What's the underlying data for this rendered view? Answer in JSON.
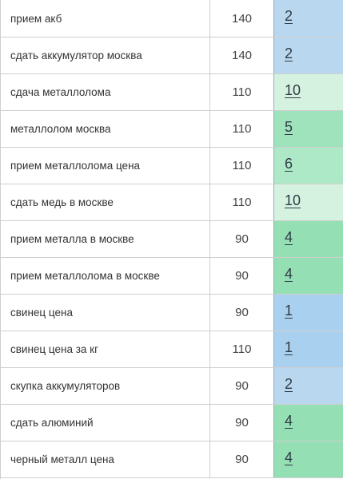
{
  "rows": [
    {
      "query": "прием акб",
      "frequency": "140",
      "rank": "2",
      "color": "#b9d8f0"
    },
    {
      "query": "сдать аккумулятор москва",
      "frequency": "140",
      "rank": "2",
      "color": "#b9d8f0"
    },
    {
      "query": "сдача металлолома",
      "frequency": "110",
      "rank": "10",
      "color": "#d5f2e1"
    },
    {
      "query": "металлолом москва",
      "frequency": "110",
      "rank": "5",
      "color": "#9ee3bc"
    },
    {
      "query": "прием металлолома цена",
      "frequency": "110",
      "rank": "6",
      "color": "#ade8c7"
    },
    {
      "query": "сдать медь в москве",
      "frequency": "110",
      "rank": "10",
      "color": "#d5f2e1"
    },
    {
      "query": "прием металла в москве",
      "frequency": "90",
      "rank": "4",
      "color": "#94dfb4"
    },
    {
      "query": "прием металлолома в москве",
      "frequency": "90",
      "rank": "4",
      "color": "#94dfb4"
    },
    {
      "query": "свинец цена",
      "frequency": "90",
      "rank": "1",
      "color": "#a9d0ee"
    },
    {
      "query": "свинец цена за кг",
      "frequency": "110",
      "rank": "1",
      "color": "#a9d0ee"
    },
    {
      "query": "скупка аккумуляторов",
      "frequency": "90",
      "rank": "2",
      "color": "#b9d8f0"
    },
    {
      "query": "сдать алюминий",
      "frequency": "90",
      "rank": "4",
      "color": "#94dfb4"
    },
    {
      "query": "черный металл цена",
      "frequency": "90",
      "rank": "4",
      "color": "#94dfb4"
    }
  ]
}
